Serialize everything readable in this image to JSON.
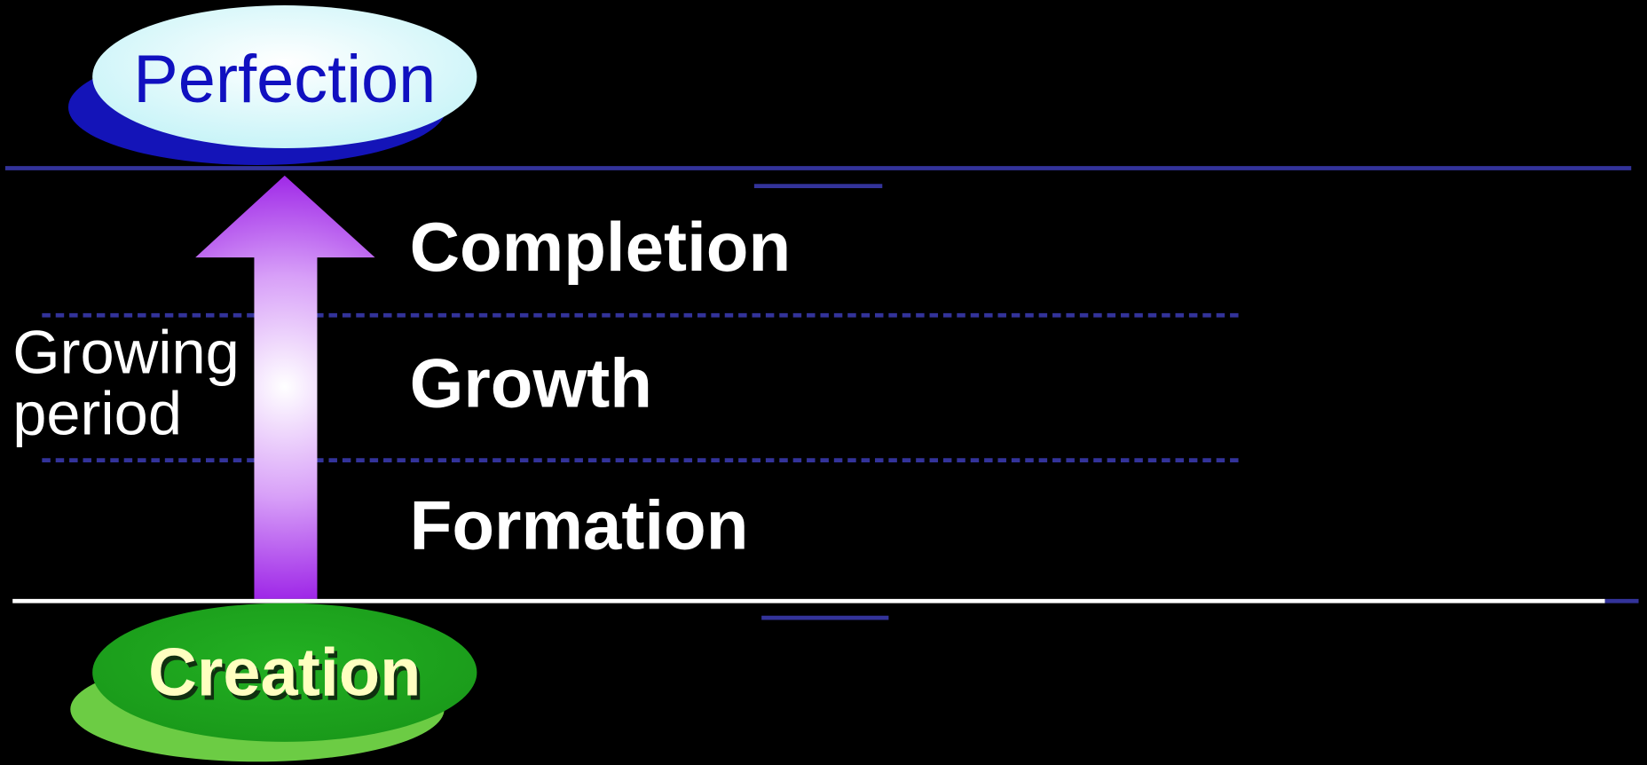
{
  "top": {
    "label": "Perfection"
  },
  "stages": [
    {
      "label": "Completion"
    },
    {
      "label": "Growth"
    },
    {
      "label": "Formation"
    }
  ],
  "side_label": [
    "Growing",
    "period"
  ],
  "bottom": {
    "label": "Creation"
  }
}
